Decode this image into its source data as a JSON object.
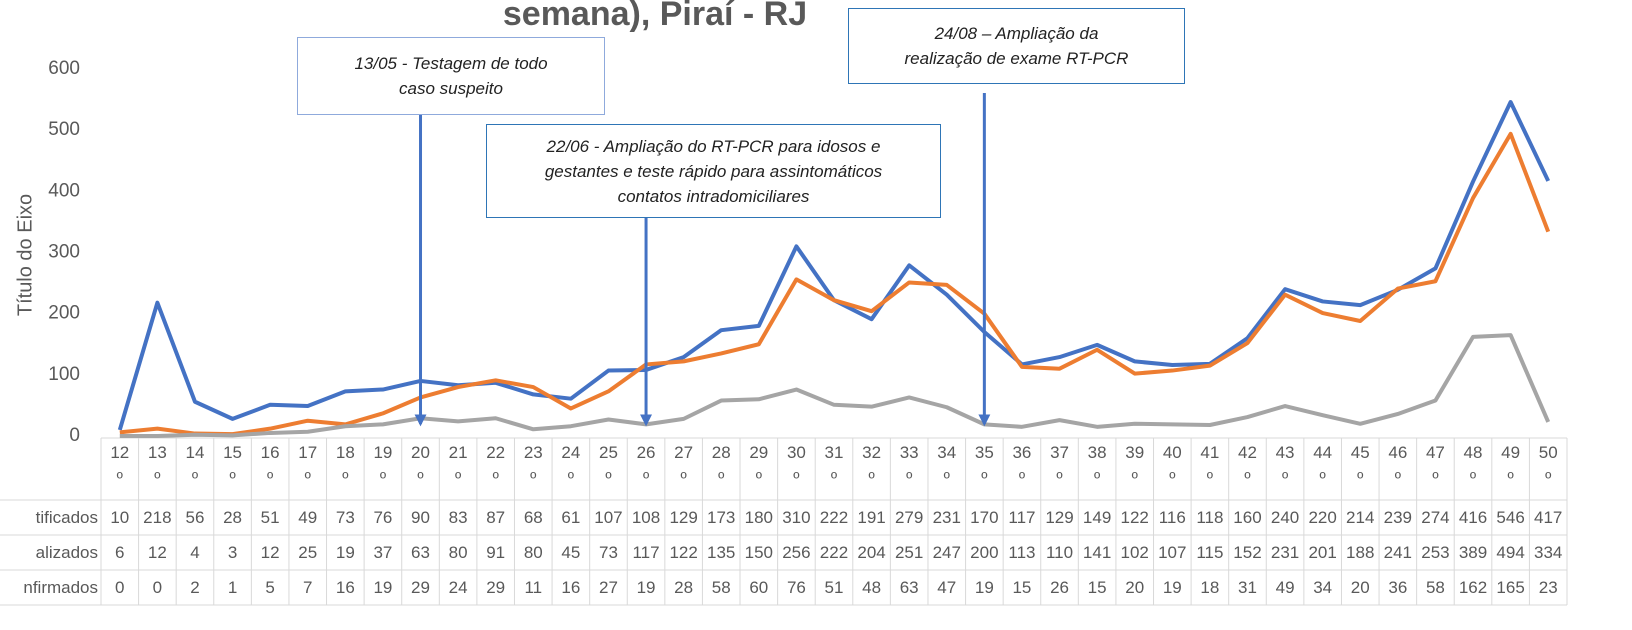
{
  "chart_data": {
    "type": "line",
    "title": "semana), Piraí - RJ",
    "y_axis_label": "Título do Eixo",
    "categories": [
      "12º",
      "13º",
      "14º",
      "15º",
      "16º",
      "17º",
      "18º",
      "19º",
      "20º",
      "21º",
      "22º",
      "23º",
      "24º",
      "25º",
      "26º",
      "27º",
      "28º",
      "29º",
      "30º",
      "31º",
      "32º",
      "33º",
      "34º",
      "35º",
      "36º",
      "37º",
      "38º",
      "39º",
      "40º",
      "41º",
      "42º",
      "43º",
      "44º",
      "45º",
      "46º",
      "47º",
      "48º",
      "49º",
      "50º"
    ],
    "series": [
      {
        "name": "tificados",
        "color": "#4472c4",
        "values": [
          10,
          218,
          56,
          28,
          51,
          49,
          73,
          76,
          90,
          83,
          87,
          68,
          61,
          107,
          108,
          129,
          173,
          180,
          310,
          222,
          191,
          279,
          231,
          170,
          117,
          129,
          149,
          122,
          116,
          118,
          160,
          240,
          220,
          214,
          239,
          274,
          416,
          546,
          417
        ]
      },
      {
        "name": "alizados",
        "color": "#ed7d31",
        "values": [
          6,
          12,
          4,
          3,
          12,
          25,
          19,
          37,
          63,
          80,
          91,
          80,
          45,
          73,
          117,
          122,
          135,
          150,
          256,
          222,
          204,
          251,
          247,
          200,
          113,
          110,
          141,
          102,
          107,
          115,
          152,
          231,
          201,
          188,
          241,
          253,
          389,
          494,
          334
        ]
      },
      {
        "name": "nfirmados",
        "color": "#a5a5a5",
        "values": [
          0,
          0,
          2,
          1,
          5,
          7,
          16,
          19,
          29,
          24,
          29,
          11,
          16,
          27,
          19,
          28,
          58,
          60,
          76,
          51,
          48,
          63,
          47,
          19,
          15,
          26,
          15,
          20,
          19,
          18,
          31,
          49,
          34,
          20,
          36,
          58,
          162,
          165,
          23
        ]
      }
    ],
    "ylim": [
      0,
      600
    ],
    "yticks": [
      0,
      100,
      200,
      300,
      400,
      500,
      600
    ],
    "grid": false,
    "annotations": [
      {
        "lines": [
          "13/05 - Testagem de todo",
          "caso suspeito"
        ]
      },
      {
        "lines": [
          "22/06 - Ampliação do RT-PCR para idosos e",
          "gestantes e teste rápido para assintomáticos",
          "contatos intradomiciliares"
        ]
      },
      {
        "lines": [
          "24/08 – Ampliação da",
          "realização de exame RT-PCR"
        ]
      }
    ]
  }
}
